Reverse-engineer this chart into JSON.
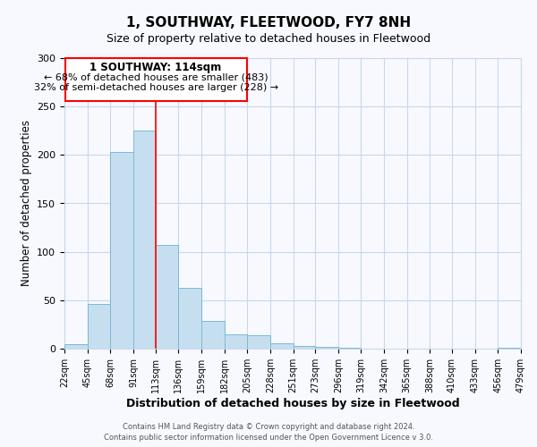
{
  "title": "1, SOUTHWAY, FLEETWOOD, FY7 8NH",
  "subtitle": "Size of property relative to detached houses in Fleetwood",
  "xlabel": "Distribution of detached houses by size in Fleetwood",
  "ylabel": "Number of detached properties",
  "bar_color": "#c5dff0",
  "bar_edge_color": "#7bb8d4",
  "background_color": "#f8f9ff",
  "grid_color": "#c8d8ea",
  "bin_edges": [
    22,
    45,
    68,
    91,
    113,
    136,
    159,
    182,
    205,
    228,
    251,
    273,
    296,
    319,
    342,
    365,
    388,
    410,
    433,
    456,
    479
  ],
  "bin_labels": [
    "22sqm",
    "45sqm",
    "68sqm",
    "91sqm",
    "113sqm",
    "136sqm",
    "159sqm",
    "182sqm",
    "205sqm",
    "228sqm",
    "251sqm",
    "273sqm",
    "296sqm",
    "319sqm",
    "342sqm",
    "365sqm",
    "388sqm",
    "410sqm",
    "433sqm",
    "456sqm",
    "479sqm"
  ],
  "counts": [
    5,
    46,
    203,
    225,
    107,
    63,
    29,
    15,
    14,
    6,
    3,
    2,
    1,
    0,
    0,
    0,
    0,
    0,
    0,
    1
  ],
  "vline_x": 113,
  "annotation_title": "1 SOUTHWAY: 114sqm",
  "annotation_line1": "← 68% of detached houses are smaller (483)",
  "annotation_line2": "32% of semi-detached houses are larger (228) →",
  "ylim": [
    0,
    300
  ],
  "yticks": [
    0,
    50,
    100,
    150,
    200,
    250,
    300
  ],
  "footer_line1": "Contains HM Land Registry data © Crown copyright and database right 2024.",
  "footer_line2": "Contains public sector information licensed under the Open Government Licence v 3.0."
}
